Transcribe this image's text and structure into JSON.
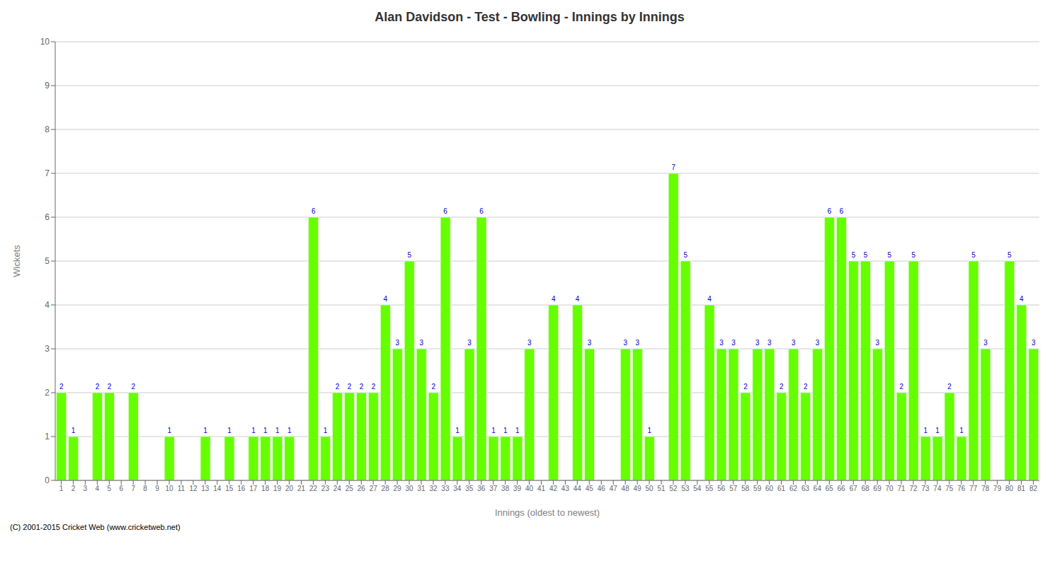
{
  "chart_data": {
    "type": "bar",
    "title": "Alan Davidson - Test - Bowling - Innings by Innings",
    "xlabel": "Innings (oldest to newest)",
    "ylabel": "Wickets",
    "categories": [
      "1",
      "2",
      "3",
      "4",
      "5",
      "6",
      "7",
      "8",
      "9",
      "10",
      "11",
      "12",
      "13",
      "14",
      "15",
      "16",
      "17",
      "18",
      "19",
      "20",
      "21",
      "22",
      "23",
      "24",
      "25",
      "26",
      "27",
      "28",
      "29",
      "30",
      "31",
      "32",
      "33",
      "34",
      "35",
      "36",
      "37",
      "38",
      "39",
      "40",
      "41",
      "42",
      "43",
      "44",
      "45",
      "46",
      "47",
      "48",
      "49",
      "50",
      "51",
      "52",
      "53",
      "54",
      "55",
      "56",
      "57",
      "58",
      "59",
      "60",
      "61",
      "62",
      "63",
      "64",
      "65",
      "66",
      "67",
      "68",
      "69",
      "70",
      "71",
      "72",
      "73",
      "74",
      "75",
      "76",
      "77",
      "78",
      "79",
      "80",
      "81",
      "82"
    ],
    "values": [
      2,
      1,
      0,
      2,
      2,
      0,
      2,
      0,
      0,
      1,
      0,
      0,
      1,
      0,
      1,
      0,
      1,
      1,
      1,
      1,
      0,
      6,
      1,
      2,
      2,
      2,
      2,
      4,
      3,
      5,
      3,
      2,
      6,
      1,
      3,
      6,
      1,
      1,
      1,
      3,
      0,
      4,
      0,
      4,
      3,
      0,
      0,
      3,
      3,
      1,
      0,
      7,
      5,
      0,
      4,
      3,
      3,
      2,
      3,
      3,
      2,
      3,
      2,
      3,
      6,
      6,
      5,
      5,
      3,
      5,
      2,
      5,
      1,
      1,
      2,
      1,
      5,
      3,
      0,
      5,
      4,
      3
    ],
    "color": "#66ff00",
    "ylim": [
      0,
      10
    ],
    "yticks": [
      0,
      1,
      2,
      3,
      4,
      5,
      6,
      7,
      8,
      9,
      10
    ],
    "grid": true,
    "data_labels": true,
    "annotations": [
      "(C) 2001-2015 Cricket Web (www.cricketweb.net)"
    ]
  }
}
